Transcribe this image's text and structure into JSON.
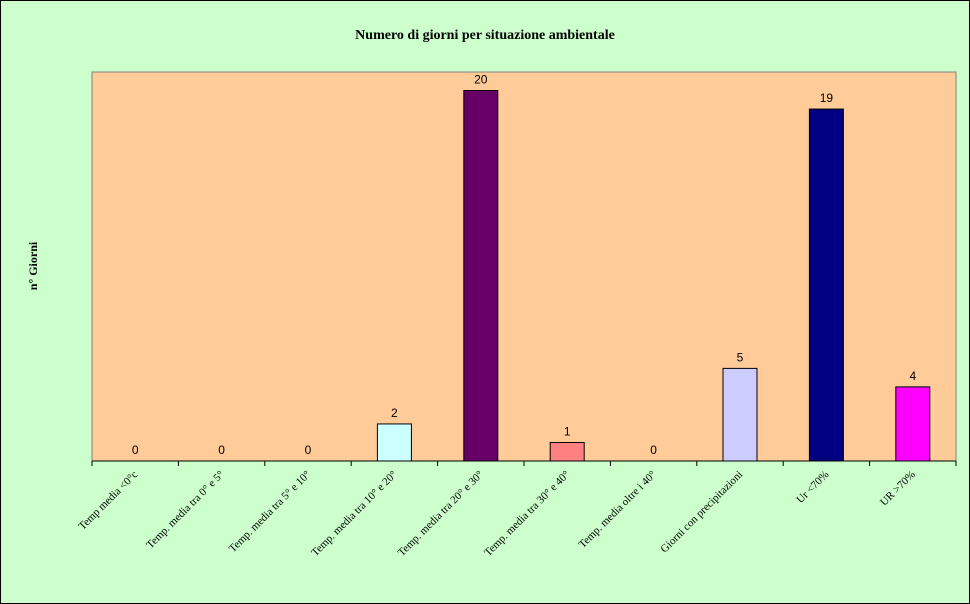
{
  "chart_data": {
    "type": "bar",
    "title": "Numero di giorni per situazione ambientale",
    "xlabel": "",
    "ylabel": "n° Giorni",
    "categories": [
      "Temp media <0°c",
      "Temp. media tra 0° e 5°",
      "Temp. media tra 5° e 10°",
      "Temp. media tra 10° e 20°",
      "Temp. media tra 20° e 30°",
      "Temp. media tra 30° e 40°",
      "Temp. media oltre i 40°",
      "Giorni con precipitazioni",
      "Ur  <70%",
      "UR >70%"
    ],
    "values": [
      0,
      0,
      0,
      2,
      20,
      1,
      0,
      5,
      19,
      4
    ],
    "bar_colors": [
      "#ccffff",
      "#ccffff",
      "#ccffff",
      "#ccffff",
      "#660066",
      "#ff8080",
      "#ccffff",
      "#ccccff",
      "#000080",
      "#ff00ff"
    ],
    "ylim": [
      0,
      21
    ],
    "grid": false,
    "legend": "none",
    "colors": {
      "background": "#ccffcc",
      "plot_area": "#ffcc99"
    }
  }
}
